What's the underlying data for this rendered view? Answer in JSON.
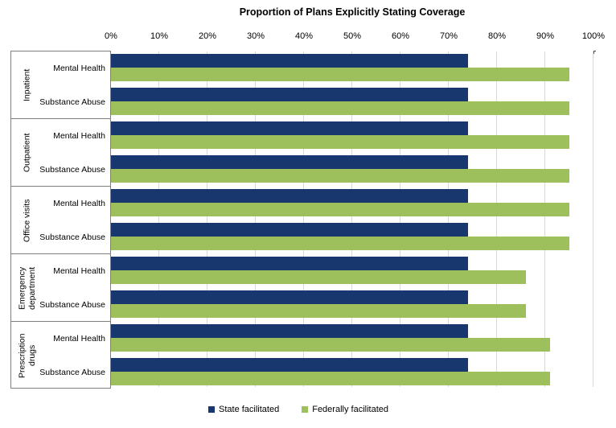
{
  "chart_data": {
    "type": "bar",
    "orientation": "horizontal",
    "title": "Proportion of Plans Explicitly Stating Coverage",
    "x_axis": {
      "position": "top",
      "min": 0,
      "max": 100,
      "tick_step": 10,
      "tick_labels": [
        "0%",
        "10%",
        "20%",
        "30%",
        "40%",
        "50%",
        "60%",
        "70%",
        "80%",
        "90%",
        "100%"
      ]
    },
    "grid": true,
    "gridline_color": "#D9D9D9",
    "series": [
      {
        "name": "State facilitated",
        "color": "#18376F"
      },
      {
        "name": "Federally facilitated",
        "color": "#9EC05C"
      }
    ],
    "groups": [
      {
        "label": "Inpatient",
        "rows": [
          {
            "label": "Mental Health",
            "values": [
              74,
              95
            ]
          },
          {
            "label": "Substance Abuse",
            "values": [
              74,
              95
            ]
          }
        ]
      },
      {
        "label": "Outpatient",
        "rows": [
          {
            "label": "Mental Health",
            "values": [
              74,
              95
            ]
          },
          {
            "label": "Substance Abuse",
            "values": [
              74,
              95
            ]
          }
        ]
      },
      {
        "label": "Office visits",
        "rows": [
          {
            "label": "Mental Health",
            "values": [
              74,
              95
            ]
          },
          {
            "label": "Substance Abuse",
            "values": [
              74,
              95
            ]
          }
        ]
      },
      {
        "label": "Emergency department",
        "rows": [
          {
            "label": "Mental Health",
            "values": [
              74,
              86
            ]
          },
          {
            "label": "Substance Abuse",
            "values": [
              74,
              86
            ]
          }
        ]
      },
      {
        "label": "Prescription drugs",
        "rows": [
          {
            "label": "Mental Health",
            "values": [
              74,
              91
            ]
          },
          {
            "label": "Substance Abuse",
            "values": [
              74,
              91
            ]
          }
        ]
      }
    ],
    "legend": {
      "position": "bottom",
      "entries": [
        "State facilitated",
        "Federally facilitated"
      ]
    }
  }
}
